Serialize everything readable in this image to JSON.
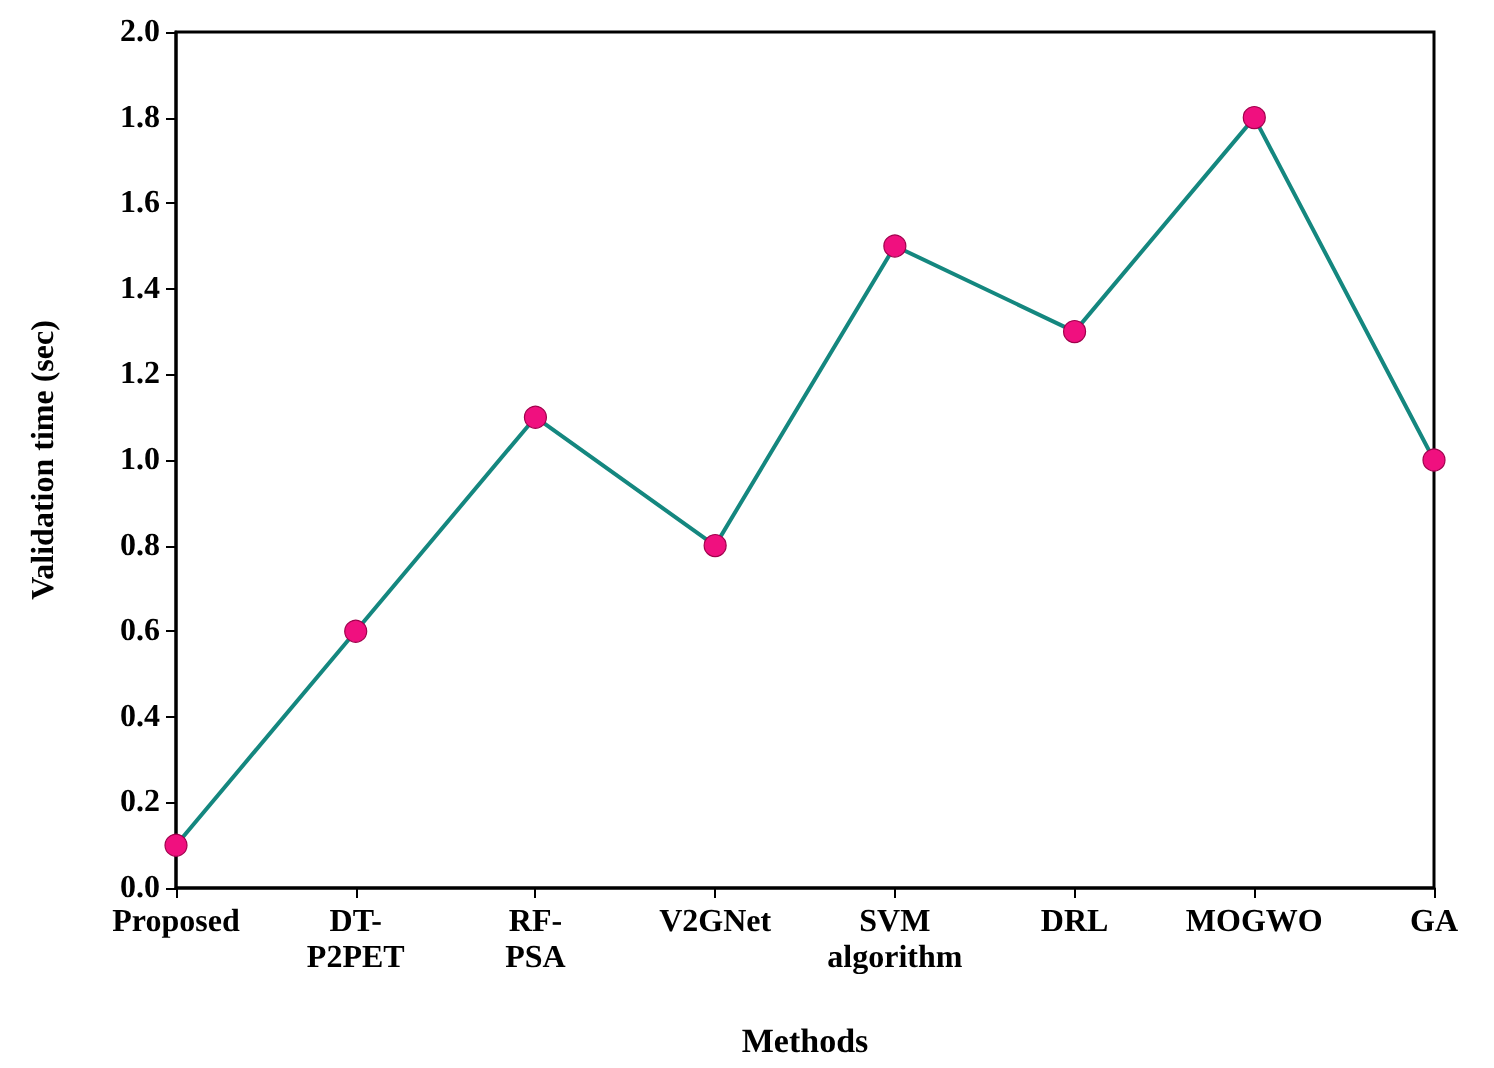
{
  "chart_data": {
    "type": "line",
    "xlabel": "Methods",
    "ylabel": "Validation time (sec)",
    "categories": [
      "Proposed",
      "DT-P2PET",
      "RF-PSA",
      "V2GNet",
      "SVM algorithm",
      "DRL",
      "MOGWO",
      "GA"
    ],
    "series": [
      {
        "color": "#14877f",
        "colors": [
          "#f0107f",
          "#f0107f",
          "#f0107f",
          "#f0107f",
          "#f0107f",
          "#f0107f",
          "#f0107f",
          "#f0107f"
        ],
        "values": [
          0.1,
          0.6,
          1.1,
          0.8,
          1.5,
          1.3,
          1.8,
          1.0
        ]
      }
    ],
    "ylim": [
      0,
      2
    ],
    "yticks": [
      {
        "value": 0,
        "label": "0.0"
      },
      0.2,
      0.4,
      0.6,
      0.8,
      {
        "value": 1,
        "label": "1.0"
      },
      1.2,
      1.4,
      1.6,
      1.8,
      {
        "value": 2,
        "label": "2.0"
      }
    ],
    "marker": "circle",
    "line_style": "solid"
  }
}
